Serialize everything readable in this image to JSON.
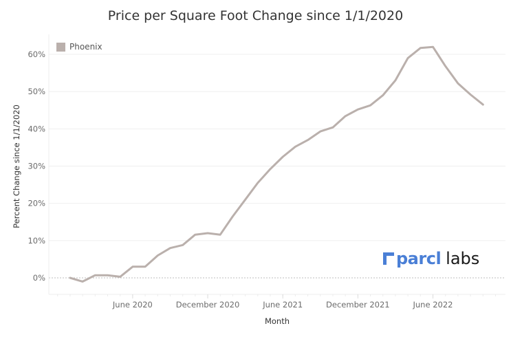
{
  "chart_data": {
    "type": "line",
    "title": "Price per Square Foot Change since 1/1/2020",
    "xlabel": "Month",
    "ylabel": "Percent Change since 1/1/2020",
    "ylim": [
      -4.5,
      65
    ],
    "yticks": [
      0,
      10,
      20,
      30,
      40,
      50,
      60
    ],
    "ytick_labels": [
      "0%",
      "10%",
      "20%",
      "30%",
      "40%",
      "50%",
      "60%"
    ],
    "xtick_month_index": [
      5,
      11,
      17,
      23,
      29
    ],
    "xtick_labels": [
      "June 2020",
      "December 2020",
      "June 2021",
      "December 2021",
      "June 2022"
    ],
    "x_range_months": [
      -1.7,
      34.8
    ],
    "grid": true,
    "legend_position": "top-left",
    "x": [
      "2020-01",
      "2020-02",
      "2020-03",
      "2020-04",
      "2020-05",
      "2020-06",
      "2020-07",
      "2020-08",
      "2020-09",
      "2020-10",
      "2020-11",
      "2020-12",
      "2021-01",
      "2021-02",
      "2021-03",
      "2021-04",
      "2021-05",
      "2021-06",
      "2021-07",
      "2021-08",
      "2021-09",
      "2021-10",
      "2021-11",
      "2021-12",
      "2022-01",
      "2022-02",
      "2022-03",
      "2022-04",
      "2022-05",
      "2022-06",
      "2022-07",
      "2022-08",
      "2022-09",
      "2022-10"
    ],
    "series": [
      {
        "name": "Phoenix",
        "color": "#bab0ac",
        "values": [
          0,
          -1,
          0.7,
          0.7,
          0.3,
          3,
          3,
          6,
          8,
          8.8,
          11.6,
          12,
          11.6,
          16.5,
          21,
          25.5,
          29.2,
          32.5,
          35.2,
          37,
          39.3,
          40.4,
          43.4,
          45.2,
          46.3,
          49,
          53,
          59,
          61.7,
          62,
          56.8,
          52.2,
          49.2,
          46.5
        ]
      }
    ]
  },
  "logo": {
    "brand": "parcl",
    "sub": "labs",
    "brand_color": "#4a7fd6"
  }
}
